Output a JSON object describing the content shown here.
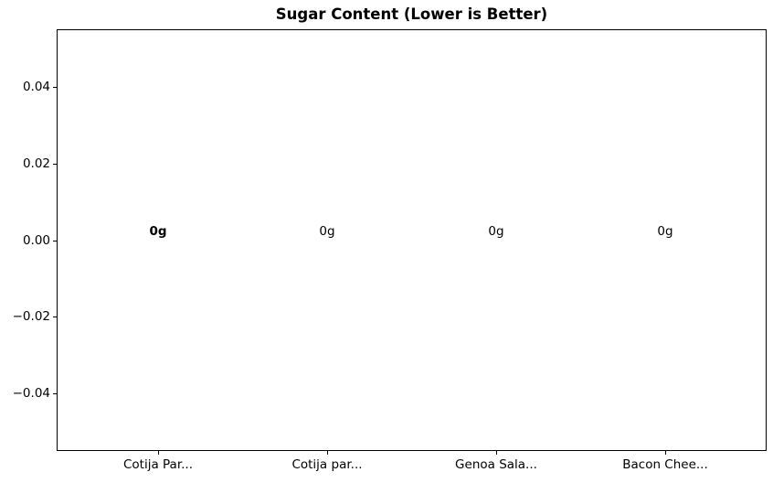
{
  "chart_data": {
    "type": "bar",
    "title": "Sugar Content (Lower is Better)",
    "categories": [
      "Cotija Par...",
      "Cotija par...",
      "Genoa Sala...",
      "Bacon Chee..."
    ],
    "values": [
      0,
      0,
      0,
      0
    ],
    "bar_labels": [
      "0g",
      "0g",
      "0g",
      "0g"
    ],
    "y_ticks": [
      {
        "value": 0.04,
        "label": "0.04"
      },
      {
        "value": 0.02,
        "label": "0.02"
      },
      {
        "value": 0.0,
        "label": "0.00"
      },
      {
        "value": -0.02,
        "label": "−0.02"
      },
      {
        "value": -0.04,
        "label": "−0.04"
      }
    ],
    "xlabel": "",
    "ylabel": "",
    "ylim": [
      -0.055,
      0.055
    ],
    "xlim": [
      -0.6,
      3.6
    ],
    "grid": false,
    "legend": "none",
    "layout": {
      "first_label_bold": true,
      "text_color": "#000000",
      "axes_edge_color": "#000000",
      "background_color": "#ffffff"
    }
  }
}
